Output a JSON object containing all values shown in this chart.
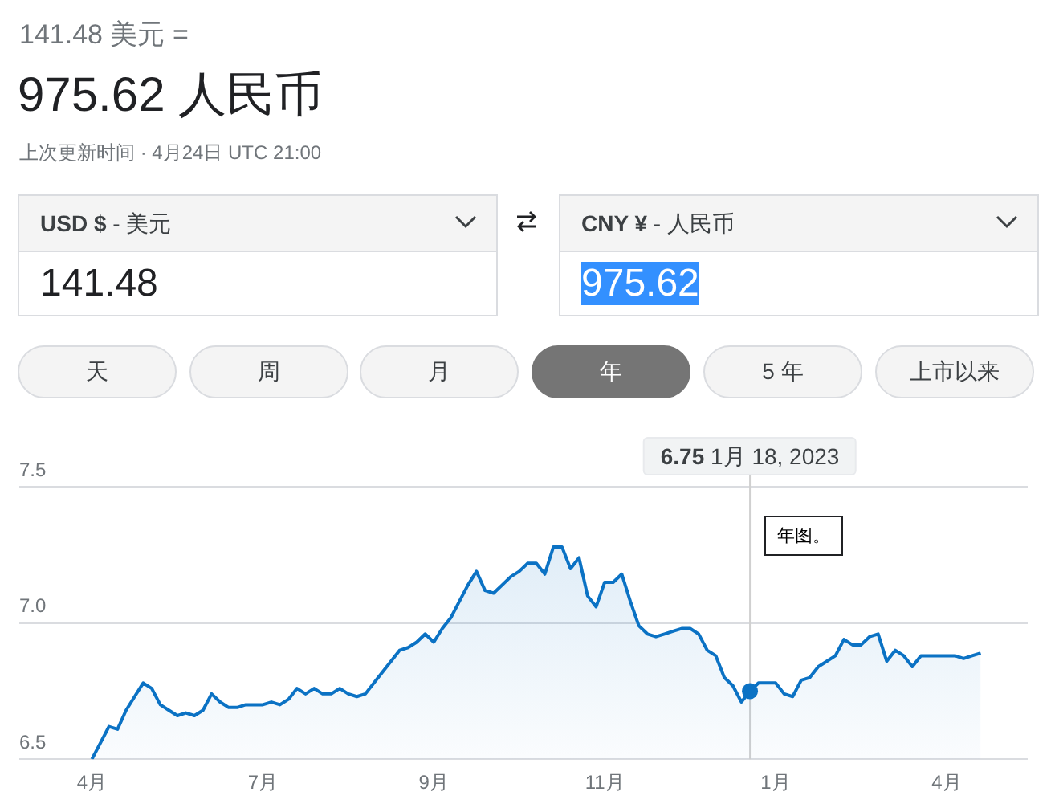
{
  "chart_data": {
    "type": "area",
    "title": "975.62 人民币",
    "subtitle": "141.48 美元 =",
    "annotations": [
      "上次更新时间 · 4月24日 UTC 21:00",
      "USD $ - 美元",
      "141.48",
      "CNY ¥ - 人民币",
      "975.62",
      "天",
      "周",
      "月",
      "年",
      "5 年",
      "上市以来",
      "年图。",
      "6.75 1月 18, 2023"
    ],
    "categories": [
      "4月",
      null,
      null,
      null,
      null,
      null,
      null,
      null,
      null,
      null,
      null,
      null,
      null,
      null,
      null,
      null,
      null,
      null,
      null,
      null,
      "7月",
      null,
      null,
      null,
      null,
      null,
      null,
      null,
      null,
      null,
      null,
      null,
      null,
      null,
      null,
      null,
      null,
      null,
      null,
      null,
      "9月",
      null,
      null,
      null,
      null,
      null,
      null,
      null,
      null,
      null,
      null,
      null,
      null,
      null,
      null,
      null,
      null,
      null,
      null,
      null,
      "11月",
      null,
      null,
      null,
      null,
      null,
      null,
      null,
      null,
      null,
      null,
      null,
      null,
      null,
      null,
      null,
      null,
      null,
      null,
      null,
      "1月",
      null,
      null,
      null,
      null,
      null,
      null,
      null,
      null,
      null,
      null,
      null,
      null,
      null,
      null,
      null,
      null,
      null,
      null,
      null,
      "4月",
      null,
      null,
      null,
      null
    ],
    "series": [
      {
        "color": "#0b72c4",
        "values": [
          6.5,
          6.56,
          6.62,
          6.61,
          6.68,
          6.73,
          6.78,
          6.76,
          6.7,
          6.68,
          6.66,
          6.67,
          6.66,
          6.68,
          6.74,
          6.71,
          6.69,
          6.69,
          6.7,
          6.7,
          6.7,
          6.71,
          6.7,
          6.72,
          6.76,
          6.74,
          6.76,
          6.74,
          6.74,
          6.76,
          6.74,
          6.73,
          6.74,
          6.78,
          6.82,
          6.86,
          6.9,
          6.91,
          6.93,
          6.96,
          6.93,
          6.98,
          7.02,
          7.08,
          7.14,
          7.19,
          7.12,
          7.11,
          7.14,
          7.17,
          7.19,
          7.22,
          7.22,
          7.18,
          7.28,
          7.28,
          7.2,
          7.24,
          7.1,
          7.06,
          7.15,
          7.15,
          7.18,
          7.08,
          6.99,
          6.96,
          6.95,
          6.96,
          6.97,
          6.98,
          6.98,
          6.96,
          6.9,
          6.88,
          6.8,
          6.77,
          6.71,
          6.75,
          6.78,
          6.78,
          6.78,
          6.74,
          6.73,
          6.79,
          6.8,
          6.84,
          6.86,
          6.88,
          6.94,
          6.92,
          6.92,
          6.95,
          6.96,
          6.86,
          6.9,
          6.88,
          6.84,
          6.88,
          6.88,
          6.88,
          6.88,
          6.88,
          6.87,
          6.88,
          6.89
        ]
      }
    ],
    "ylim": [
      6.5,
      7.56
    ],
    "yticks": [
      6.5,
      {
        "value": 7,
        "label": "7.0"
      },
      7.5
    ],
    "grid": "y",
    "marker": "none",
    "line_style": "solid"
  }
}
